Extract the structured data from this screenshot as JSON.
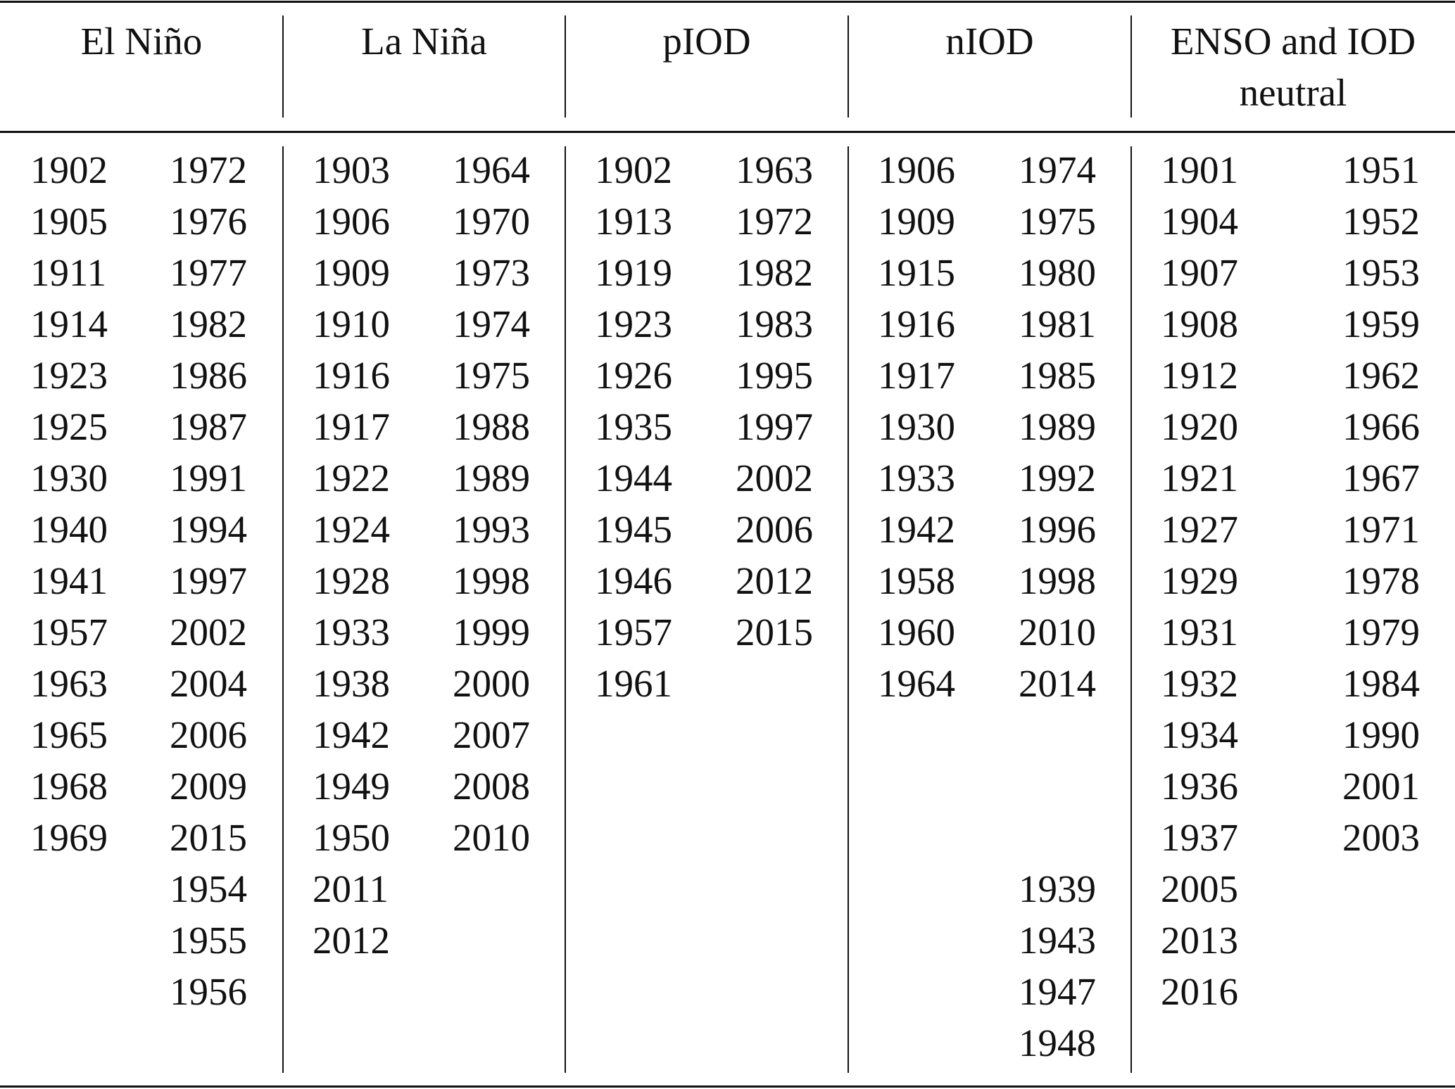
{
  "table": {
    "columns": [
      {
        "header": "El Niño",
        "left": [
          "1902",
          "1905",
          "1911",
          "1914",
          "1923",
          "1925",
          "1930",
          "1940",
          "1941",
          "1957",
          "1963",
          "1965",
          "1968",
          "1969"
        ],
        "right": [
          "1972",
          "1976",
          "1977",
          "1982",
          "1986",
          "1987",
          "1991",
          "1994",
          "1997",
          "2002",
          "2004",
          "2006",
          "2009",
          "2015",
          "1954",
          "1955",
          "1956"
        ]
      },
      {
        "header": "La Niña",
        "left": [
          "1903",
          "1906",
          "1909",
          "1910",
          "1916",
          "1917",
          "1922",
          "1924",
          "1928",
          "1933",
          "1938",
          "1942",
          "1949",
          "1950",
          "2011",
          "2012"
        ],
        "right": [
          "1964",
          "1970",
          "1973",
          "1974",
          "1975",
          "1988",
          "1989",
          "1993",
          "1998",
          "1999",
          "2000",
          "2007",
          "2008",
          "2010"
        ]
      },
      {
        "header": "pIOD",
        "left": [
          "1902",
          "1913",
          "1919",
          "1923",
          "1926",
          "1935",
          "1944",
          "1945",
          "1946",
          "1957",
          "1961"
        ],
        "right": [
          "1963",
          "1972",
          "1982",
          "1983",
          "1995",
          "1997",
          "2002",
          "2006",
          "2012",
          "2015"
        ]
      },
      {
        "header": "nIOD",
        "left": [
          "1906",
          "1909",
          "1915",
          "1916",
          "1917",
          "1930",
          "1933",
          "1942",
          "1958",
          "1960",
          "1964"
        ],
        "right": [
          "1974",
          "1975",
          "1980",
          "1981",
          "1985",
          "1989",
          "1992",
          "1996",
          "1998",
          "2010",
          "2014",
          null,
          null,
          null,
          "1939",
          "1943",
          "1947",
          "1948"
        ]
      },
      {
        "header": "ENSO and IOD neutral",
        "left": [
          "1901",
          "1904",
          "1907",
          "1908",
          "1912",
          "1920",
          "1921",
          "1927",
          "1929",
          "1931",
          "1932",
          "1934",
          "1936",
          "1937",
          "2005",
          "2013",
          "2016"
        ],
        "right": [
          "1951",
          "1952",
          "1953",
          "1959",
          "1962",
          "1966",
          "1967",
          "1971",
          "1978",
          "1979",
          "1984",
          "1990",
          "2001",
          "2003"
        ]
      }
    ]
  }
}
